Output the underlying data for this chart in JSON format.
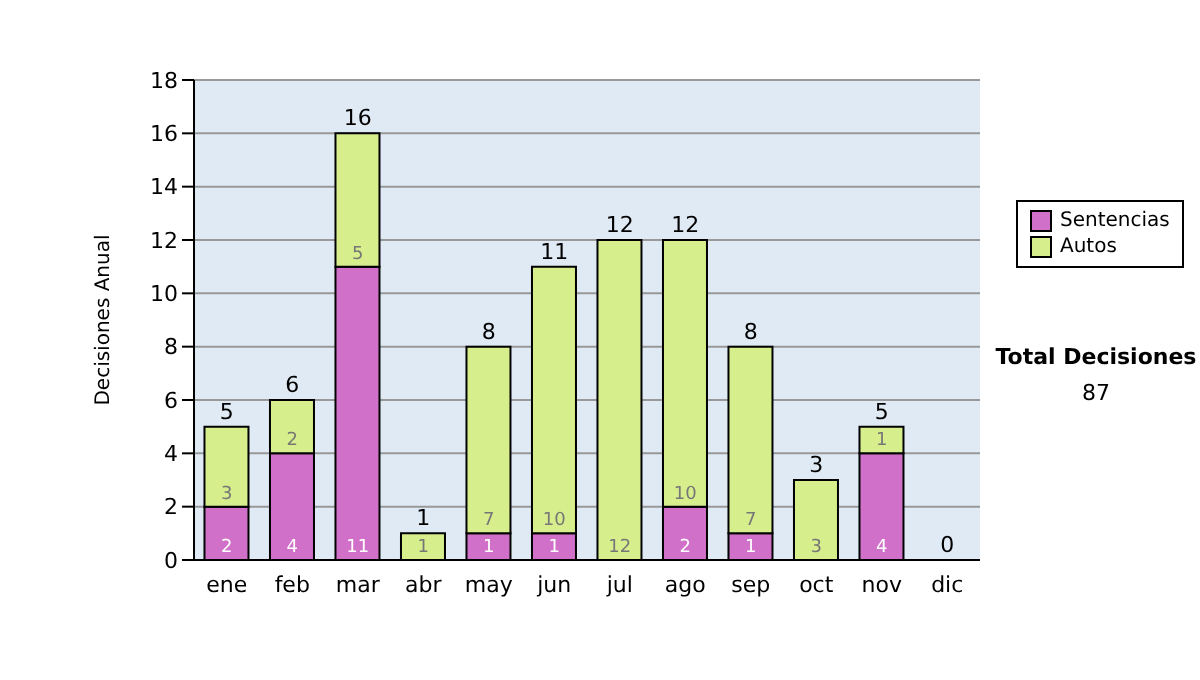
{
  "chart_data": {
    "type": "bar",
    "stacked": true,
    "ylabel": "Decisiones Anual",
    "categories": [
      "ene",
      "feb",
      "mar",
      "abr",
      "may",
      "jun",
      "jul",
      "ago",
      "sep",
      "oct",
      "nov",
      "dic"
    ],
    "series": [
      {
        "name": "Sentencias",
        "color": "#d070c8",
        "values": [
          2,
          4,
          11,
          0,
          1,
          1,
          0,
          2,
          1,
          0,
          4,
          0
        ],
        "value_labels": [
          "2",
          "4",
          "11",
          null,
          "1",
          "1",
          null,
          "2",
          "1",
          null,
          "4",
          null
        ]
      },
      {
        "name": "Autos",
        "color": "#d6ee8c",
        "values": [
          3,
          2,
          5,
          1,
          7,
          10,
          12,
          10,
          7,
          3,
          1,
          0
        ],
        "value_labels": [
          "3",
          "2",
          "5",
          "1",
          "7",
          "10",
          "12",
          "10",
          "7",
          "3",
          "1",
          null
        ]
      }
    ],
    "totals": [
      "5",
      "6",
      "16",
      "1",
      "8",
      "11",
      "12",
      "12",
      "8",
      "3",
      "5",
      "0"
    ],
    "ylim": [
      0,
      18
    ],
    "yticks": [
      0,
      2,
      4,
      6,
      8,
      10,
      12,
      14,
      16,
      18
    ],
    "grid": "y",
    "legend": "right",
    "annotations": [
      "Total Decisiones",
      "87"
    ]
  }
}
